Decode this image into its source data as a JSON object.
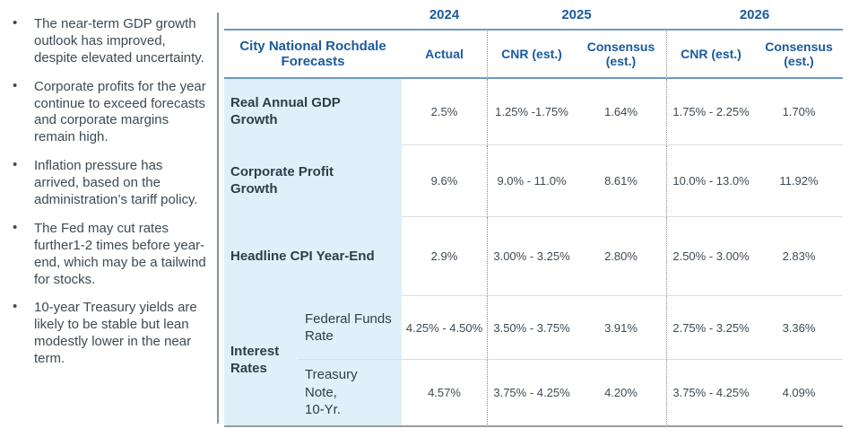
{
  "bullets": {
    "items": [
      {
        "text": "The near-term GDP growth outlook has improved, despite elevated uncertainty."
      },
      {
        "text": "Corporate profits for the year continue to exceed forecasts and corporate margins remain high."
      },
      {
        "text": "Inflation pressure has arrived, based on the administration’s tariff policy."
      },
      {
        "text": "The Fed may cut rates further1-2 times before year-end, which may be a tailwind for stocks."
      },
      {
        "text": "10-year Treasury yields are likely to be stable but lean modestly lower in the near term."
      }
    ]
  },
  "table": {
    "title": "City National Rochdale\nForecasts",
    "years": [
      "2024",
      "2025",
      "2026"
    ],
    "columns": {
      "actual": "Actual",
      "cnr": "CNR  (est.)",
      "consensus": "Consensus\n(est.)"
    },
    "interest_group_label": "Interest\nRates",
    "rows": [
      {
        "label": "Real Annual GDP\nGrowth",
        "actual": "2.5%",
        "cnr_2025": "1.25% -1.75%",
        "consensus_2025": "1.64%",
        "cnr_2026": "1.75% - 2.25%",
        "consensus_2026": "1.70%"
      },
      {
        "label": "Corporate Profit\nGrowth",
        "actual": "9.6%",
        "cnr_2025": "9.0% - 11.0%",
        "consensus_2025": "8.61%",
        "cnr_2026": "10.0% - 13.0%",
        "consensus_2026": "11.92%"
      },
      {
        "label": "Headline CPI Year-End",
        "actual": "2.9%",
        "cnr_2025": "3.00% - 3.25%",
        "consensus_2025": "2.80%",
        "cnr_2026": "2.50% - 3.00%",
        "consensus_2026": "2.83%"
      },
      {
        "label": "Federal Funds\nRate",
        "actual": "4.25% - 4.50%",
        "cnr_2025": "3.50% - 3.75%",
        "consensus_2025": "3.91%",
        "cnr_2026": "2.75% - 3.25%",
        "consensus_2026": "3.36%"
      },
      {
        "label": "Treasury\nNote,\n10-Yr.",
        "actual": "4.57%",
        "cnr_2025": "3.75% - 4.25%",
        "consensus_2025": "4.20%",
        "cnr_2026": "3.75% - 4.25%",
        "consensus_2026": "4.09%"
      }
    ]
  },
  "colors": {
    "header_blue": "#1a5a9e",
    "label_background": "#e0f0fa",
    "steel_line": "#6c98c0",
    "body_text": "#3e4a54"
  }
}
